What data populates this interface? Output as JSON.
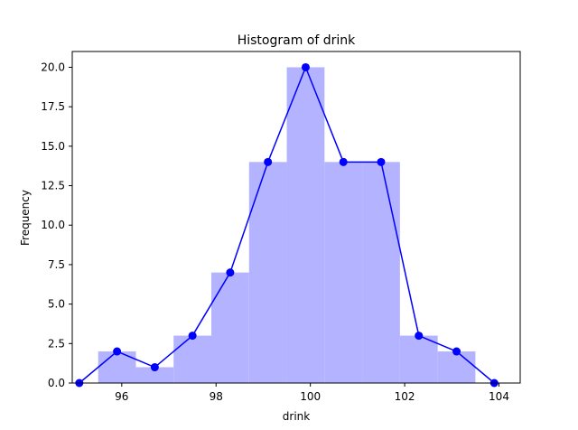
{
  "chart_data": {
    "type": "bar",
    "title": "Histogram of drink",
    "xlabel": "drink",
    "ylabel": "Frequency",
    "xlim": [
      94.95,
      104.45
    ],
    "ylim": [
      0,
      21
    ],
    "grid": false,
    "bin_edges": [
      95.5,
      96.3,
      97.1,
      97.9,
      98.7,
      99.5,
      100.3,
      101.1,
      101.9,
      102.7,
      103.5
    ],
    "bin_counts": [
      2,
      1,
      3,
      7,
      14,
      20,
      14,
      14,
      3,
      2
    ],
    "polygon": {
      "x": [
        95.1,
        95.9,
        96.7,
        97.5,
        98.3,
        99.1,
        99.9,
        100.7,
        101.5,
        102.3,
        103.1,
        103.9
      ],
      "y": [
        0,
        2,
        1,
        3,
        7,
        14,
        20,
        14,
        14,
        3,
        2,
        0
      ]
    },
    "xticks": [
      96,
      98,
      100,
      102,
      104
    ],
    "xtick_labels": [
      "96",
      "98",
      "100",
      "102",
      "104"
    ],
    "yticks": [
      0,
      2.5,
      5,
      7.5,
      10,
      12.5,
      15,
      17.5,
      20
    ],
    "ytick_labels": [
      "0.0",
      "2.5",
      "5.0",
      "7.5",
      "10.0",
      "12.5",
      "15.0",
      "17.5",
      "20.0"
    ],
    "colors": {
      "bars": "#b3b3ff",
      "line": "#0000ff"
    }
  }
}
